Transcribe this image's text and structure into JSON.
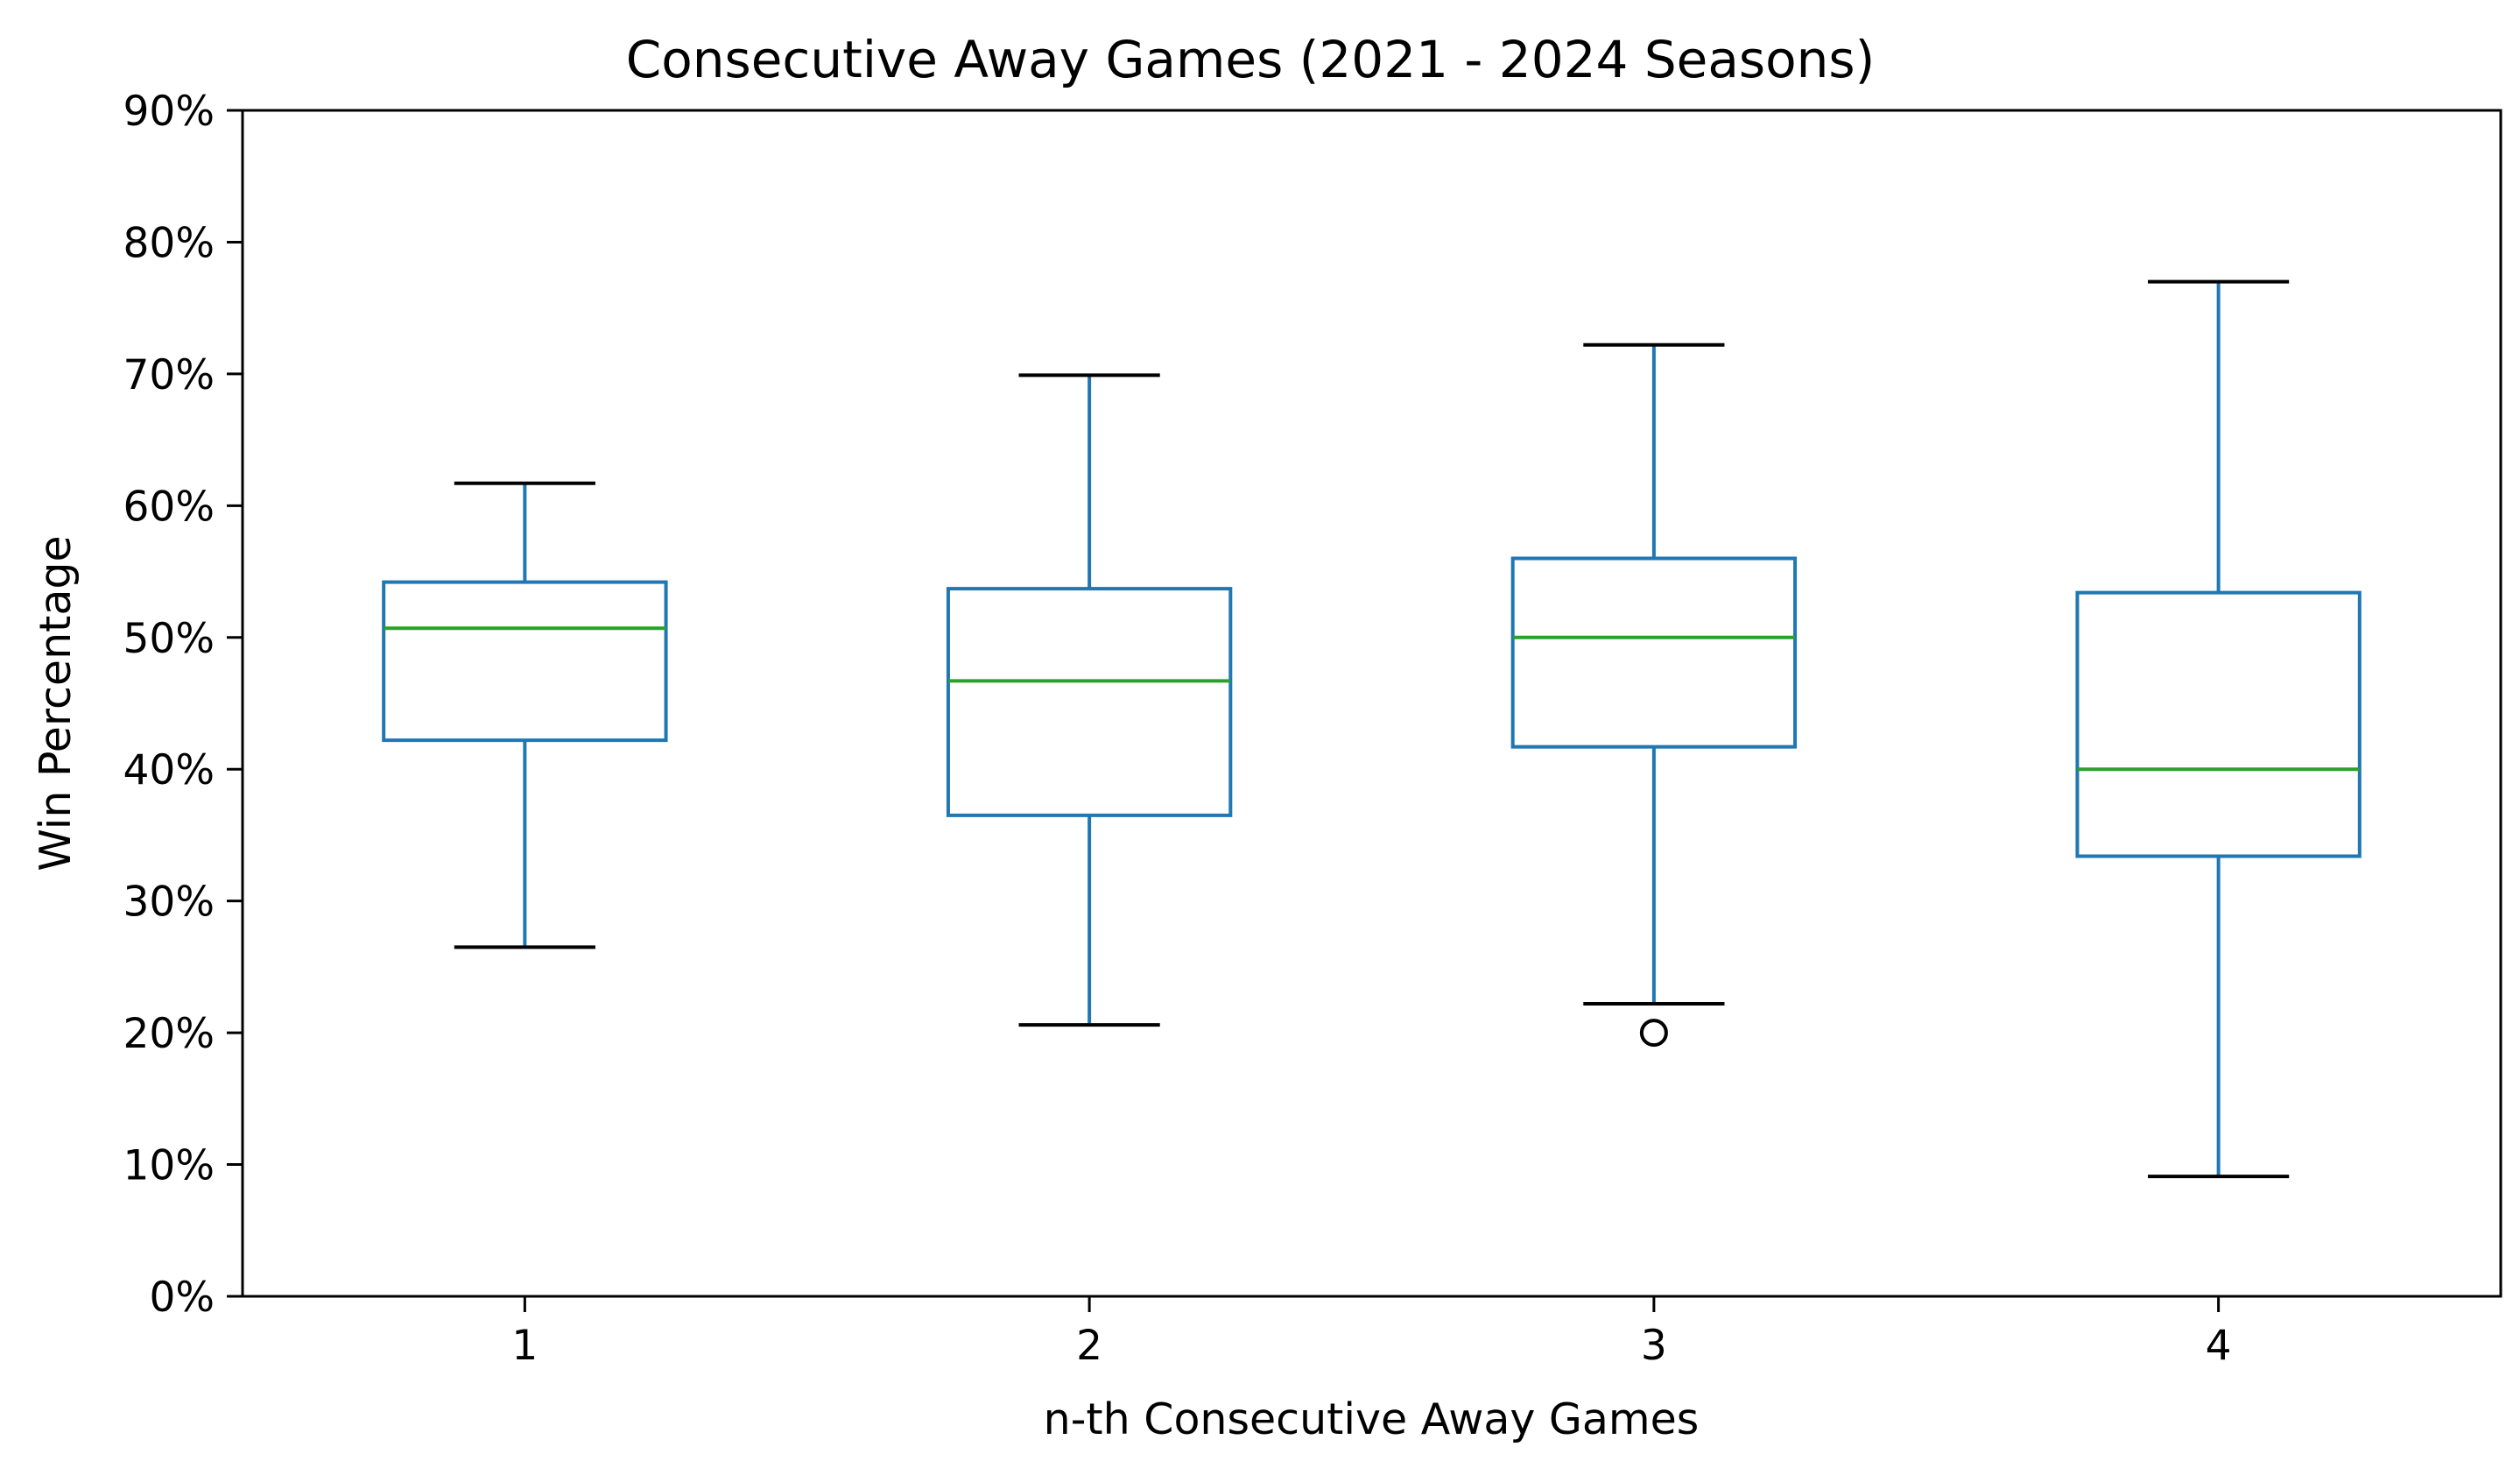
{
  "chart_data": {
    "type": "box",
    "title": "Consecutive Away Games (2021 - 2024 Seasons)",
    "xlabel": "n-th Consecutive Away Games",
    "ylabel": "Win Percentage",
    "ylim": [
      0,
      90
    ],
    "yticks": [
      "0%",
      "10%",
      "20%",
      "30%",
      "40%",
      "50%",
      "60%",
      "70%",
      "80%",
      "90%"
    ],
    "categories": [
      "1",
      "2",
      "3",
      "4"
    ],
    "boxes": [
      {
        "category": "1",
        "whisker_low": 26.5,
        "q1": 42.2,
        "median": 50.7,
        "q3": 54.2,
        "whisker_high": 61.7,
        "outliers": []
      },
      {
        "category": "2",
        "whisker_low": 20.6,
        "q1": 36.5,
        "median": 46.7,
        "q3": 53.7,
        "whisker_high": 69.9,
        "outliers": []
      },
      {
        "category": "3",
        "whisker_low": 22.2,
        "q1": 41.7,
        "median": 50.0,
        "q3": 56.0,
        "whisker_high": 72.2,
        "outliers": [
          20.0
        ]
      },
      {
        "category": "4",
        "whisker_low": 9.1,
        "q1": 33.4,
        "median": 40.0,
        "q3": 53.4,
        "whisker_high": 77.0,
        "outliers": []
      }
    ],
    "grid": false,
    "colors": {
      "box": "#1f77b4",
      "median": "#2ca02c",
      "caps": "#000000",
      "axes": "#000000"
    }
  }
}
